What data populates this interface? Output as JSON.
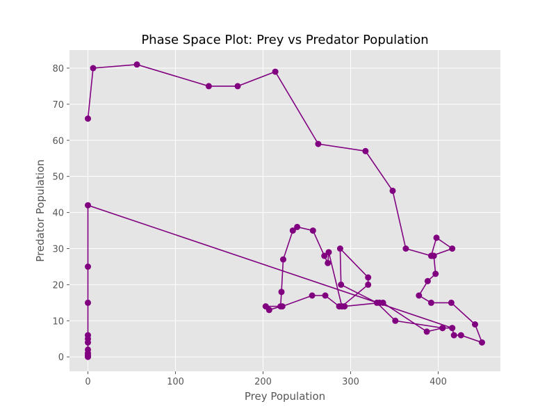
{
  "chart_data": {
    "type": "line",
    "title": "Phase Space Plot: Prey vs Predator Population",
    "xlabel": "Prey Population",
    "ylabel": "Predator Population",
    "xlim": [
      -21,
      471
    ],
    "ylim": [
      -4,
      85
    ],
    "xticks": [
      0,
      100,
      200,
      300,
      400
    ],
    "yticks": [
      0,
      10,
      20,
      30,
      40,
      50,
      60,
      70,
      80
    ],
    "grid": true,
    "legend": "none",
    "colors": {
      "line": "#800080",
      "marker": "#800080",
      "plot_background": "#e5e5e5",
      "grid": "#ffffff"
    },
    "marker": "circle",
    "series": [
      {
        "x": [
          0,
          6,
          56,
          138,
          171,
          214,
          263,
          317,
          348,
          363,
          392,
          398,
          416,
          393,
          395,
          397,
          388,
          378,
          392,
          415,
          442,
          450,
          426,
          418,
          416,
          405,
          351,
          330,
          289,
          288,
          320,
          320,
          290,
          275,
          274,
          270,
          257,
          239,
          234,
          223,
          221,
          220,
          207,
          203,
          222,
          256,
          271,
          287,
          293,
          333,
          337,
          387,
          405,
          416,
          0,
          0,
          0,
          0,
          0,
          0,
          0,
          0,
          0,
          0,
          0
        ],
        "y": [
          66,
          80,
          81,
          75,
          75,
          79,
          59,
          57,
          46,
          30,
          28,
          33,
          30,
          28,
          28,
          23,
          21,
          17,
          15,
          15,
          9,
          4,
          6,
          6,
          8,
          8,
          10,
          15,
          20,
          30,
          22,
          20,
          14,
          29,
          26,
          28,
          35,
          36,
          35,
          27,
          18,
          14,
          13,
          14,
          14,
          17,
          17,
          14,
          14,
          15,
          15,
          7,
          8,
          8,
          42,
          25,
          15,
          6,
          5,
          4,
          2,
          1,
          0.5,
          0.2,
          0
        ]
      }
    ]
  }
}
